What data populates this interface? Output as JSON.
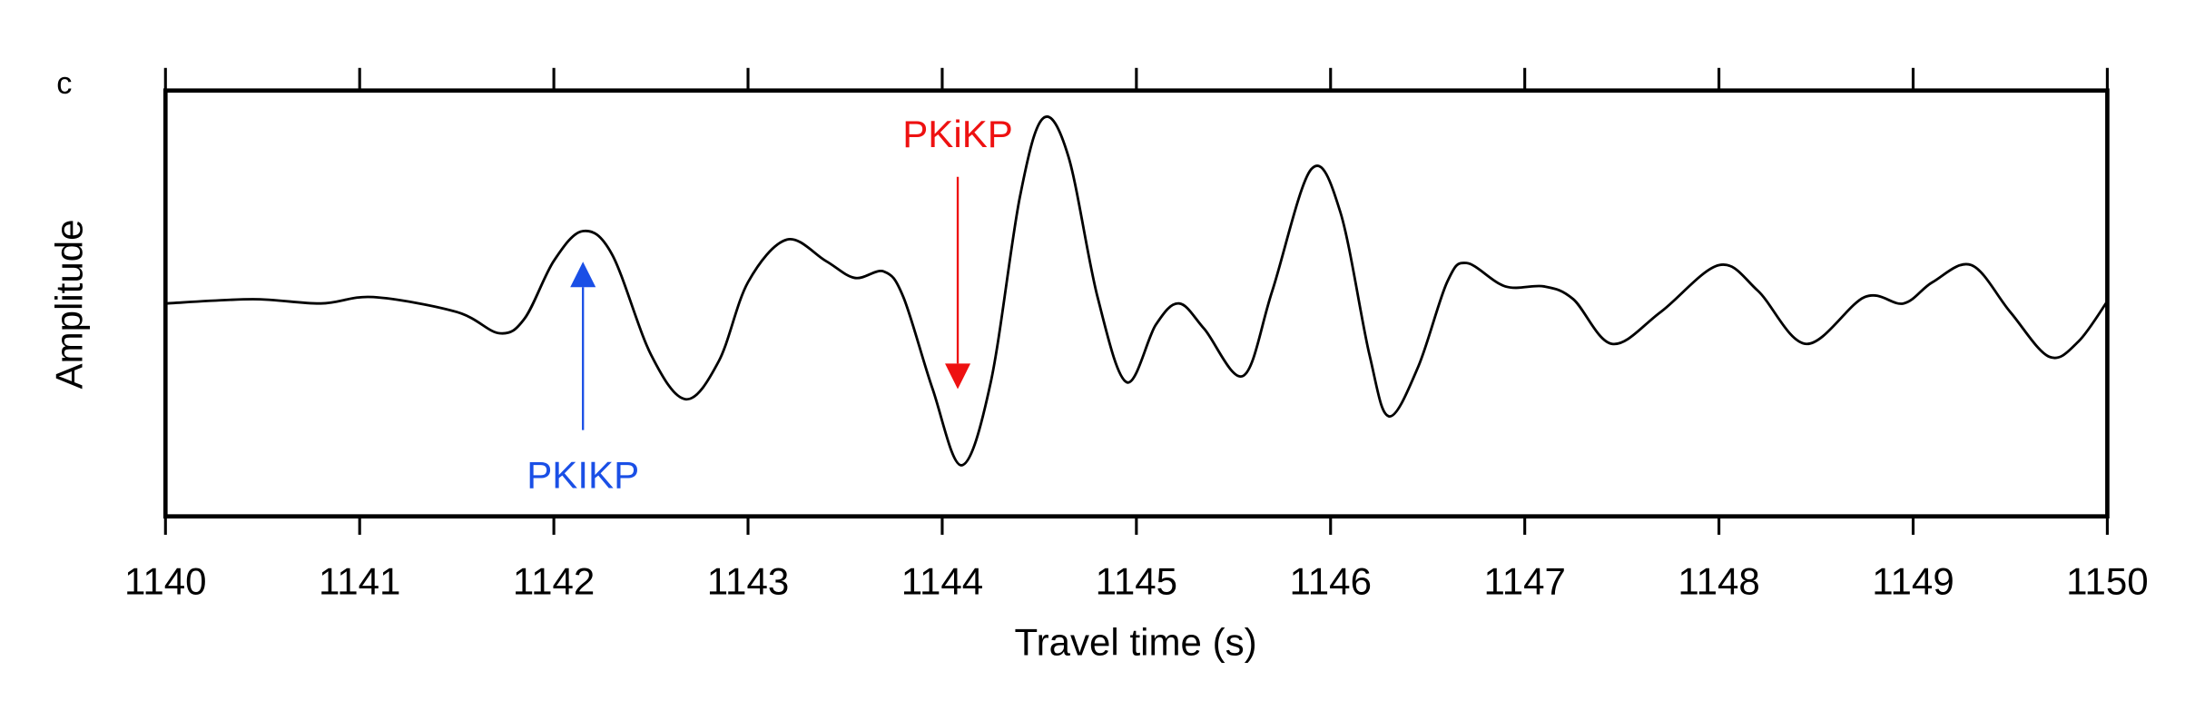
{
  "chart_data": {
    "type": "line",
    "panel_label": "c",
    "xlabel": "Travel time (s)",
    "ylabel": "Amplitude",
    "x": [
      1140,
      1140.45,
      1140.8,
      1141.07,
      1141.5,
      1141.72,
      1141.85,
      1142.0,
      1142.15,
      1142.3,
      1142.5,
      1142.68,
      1142.85,
      1143.0,
      1143.2,
      1143.4,
      1143.55,
      1143.7,
      1143.8,
      1143.95,
      1144.1,
      1144.25,
      1144.4,
      1144.52,
      1144.65,
      1144.8,
      1144.95,
      1145.1,
      1145.22,
      1145.35,
      1145.55,
      1145.7,
      1145.9,
      1146.05,
      1146.2,
      1146.3,
      1146.45,
      1146.6,
      1146.7,
      1146.9,
      1147.1,
      1147.25,
      1147.45,
      1147.7,
      1148.0,
      1148.2,
      1148.45,
      1148.75,
      1148.95,
      1149.1,
      1149.3,
      1149.5,
      1149.7,
      1149.85,
      1150
    ],
    "series": [
      {
        "color": "#000000",
        "values": [
          0,
          0.02,
          0,
          0.03,
          -0.04,
          -0.14,
          -0.07,
          0.2,
          0.34,
          0.23,
          -0.24,
          -0.45,
          -0.27,
          0.1,
          0.3,
          0.2,
          0.12,
          0.15,
          0.03,
          -0.4,
          -0.76,
          -0.37,
          0.5,
          0.87,
          0.69,
          0.03,
          -0.37,
          -0.1,
          0,
          -0.12,
          -0.34,
          0.06,
          0.63,
          0.43,
          -0.24,
          -0.53,
          -0.3,
          0.1,
          0.19,
          0.08,
          0.08,
          0.02,
          -0.19,
          -0.04,
          0.18,
          0.06,
          -0.19,
          0.03,
          0,
          0.1,
          0.18,
          -0.04,
          -0.25,
          -0.18,
          0.01
        ]
      }
    ],
    "xlim": [
      1140,
      1150
    ],
    "xticks": [
      1140,
      1141,
      1142,
      1143,
      1144,
      1145,
      1146,
      1147,
      1148,
      1149,
      1150
    ],
    "ylim": [
      -1,
      1
    ],
    "annotations": [
      {
        "text": "PKIKP",
        "x": 1142.15,
        "color": "#1a4fe6",
        "direction": "up"
      },
      {
        "text": "PKiKP",
        "x": 1144.08,
        "color": "#ee1111",
        "direction": "down"
      }
    ]
  }
}
